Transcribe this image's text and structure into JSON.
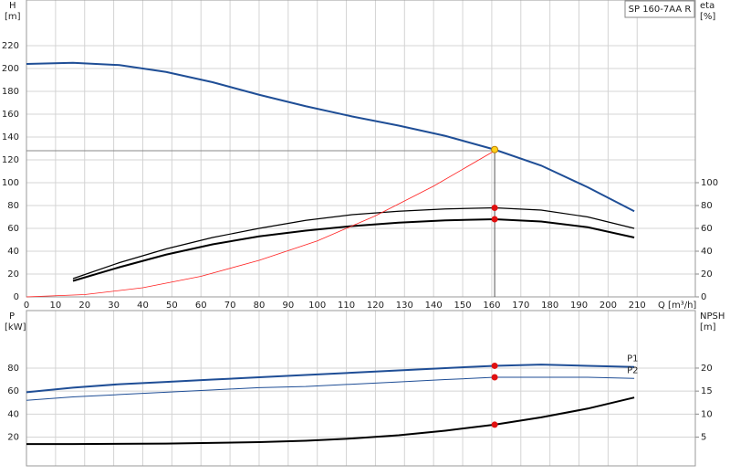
{
  "chart_data": [
    {
      "type": "line",
      "model": "SP 160-7AA R",
      "x_label": "Q [m³/h]",
      "y_label": "H",
      "y_unit": "[m]",
      "y2_label": "eta",
      "y2_unit": "[%]",
      "xlim": [
        0,
        230
      ],
      "ylim": [
        0,
        260
      ],
      "y2lim": [
        0,
        260
      ],
      "xticks": [
        0,
        10,
        20,
        30,
        40,
        50,
        60,
        70,
        80,
        90,
        100,
        110,
        120,
        130,
        140,
        150,
        160,
        170,
        180,
        190,
        200,
        210
      ],
      "show_xtick_labels": true,
      "yticks": [
        0,
        20,
        40,
        60,
        80,
        100,
        120,
        140,
        160,
        180,
        200,
        220
      ],
      "y2ticks": [
        0,
        20,
        40,
        60,
        80,
        100
      ],
      "grid": true,
      "duty_point": {
        "x": 161,
        "y": 128
      },
      "series": [
        {
          "x": [
            0,
            16,
            32,
            48,
            64,
            80,
            96,
            112,
            128,
            144,
            161,
            177,
            193,
            209
          ],
          "values": [
            204,
            205,
            203,
            197,
            188,
            177,
            167,
            158,
            150,
            141,
            129,
            115,
            96,
            75
          ],
          "color": "#1f4e96",
          "width": 2
        },
        {
          "x": [
            16,
            32,
            48,
            64,
            80,
            96,
            112,
            128,
            144,
            161,
            177,
            193,
            209
          ],
          "values": [
            16,
            30,
            42,
            52,
            60,
            67,
            72,
            75,
            77,
            78,
            76,
            70,
            60
          ],
          "color": "#000000",
          "width": 1.2,
          "axis": "y2"
        },
        {
          "x": [
            16,
            32,
            48,
            64,
            80,
            96,
            112,
            128,
            144,
            161,
            177,
            193,
            209
          ],
          "values": [
            14,
            26,
            37,
            46,
            53,
            58,
            62,
            65,
            67,
            68,
            66,
            61,
            52
          ],
          "color": "#000000",
          "width": 2,
          "axis": "y2"
        },
        {
          "x": [
            0,
            20,
            40,
            60,
            80,
            100,
            120,
            140,
            161
          ],
          "values": [
            0,
            2,
            8,
            18,
            32,
            49,
            71,
            97,
            128
          ],
          "color": "#ff2020",
          "width": 0.8
        }
      ],
      "markers": [
        {
          "x": 161,
          "y": 129,
          "color": "#ffd21a"
        },
        {
          "x": 161,
          "y": 78,
          "color": "#e01010",
          "axis": "y2"
        },
        {
          "x": 161,
          "y": 68,
          "color": "#e01010",
          "axis": "y2"
        }
      ]
    },
    {
      "type": "line",
      "y_label": "P",
      "y_unit": "[kW]",
      "y2_label": "NPSH",
      "y2_unit": "[m]",
      "xlim": [
        0,
        230
      ],
      "ylim": [
        -5,
        130
      ],
      "y2lim": [
        -1.25,
        32.5
      ],
      "xticks": [
        0,
        10,
        20,
        30,
        40,
        50,
        60,
        70,
        80,
        90,
        100,
        110,
        120,
        130,
        140,
        150,
        160,
        170,
        180,
        190,
        200,
        210
      ],
      "show_xtick_labels": false,
      "yticks": [
        20,
        40,
        60,
        80
      ],
      "y2ticks": [
        5,
        10,
        15,
        20
      ],
      "grid": true,
      "series": [
        {
          "name": "P1",
          "x": [
            0,
            16,
            32,
            48,
            64,
            80,
            96,
            112,
            128,
            144,
            161,
            177,
            193,
            209
          ],
          "values": [
            59,
            63,
            66,
            68,
            70,
            72,
            74,
            76,
            78,
            80,
            82,
            83,
            82,
            81
          ],
          "color": "#1f4e96",
          "width": 2
        },
        {
          "name": "P2",
          "x": [
            0,
            16,
            32,
            48,
            64,
            80,
            96,
            112,
            128,
            144,
            161,
            177,
            193,
            209
          ],
          "values": [
            52,
            55,
            57,
            59,
            61,
            63,
            64,
            66,
            68,
            70,
            72,
            72,
            72,
            71
          ],
          "color": "#1f4e96",
          "width": 1
        },
        {
          "x": [
            0,
            16,
            48,
            80,
            96,
            112,
            128,
            144,
            161,
            177,
            193,
            209
          ],
          "values": [
            3.5,
            3.5,
            3.6,
            3.9,
            4.2,
            4.7,
            5.4,
            6.4,
            7.7,
            9.3,
            11.2,
            13.6
          ],
          "color": "#000000",
          "width": 2,
          "axis": "y2"
        }
      ],
      "markers": [
        {
          "x": 161,
          "y": 82,
          "color": "#e01010"
        },
        {
          "x": 161,
          "y": 72,
          "color": "#e01010"
        },
        {
          "x": 161,
          "y": 7.7,
          "color": "#e01010",
          "axis": "y2"
        }
      ]
    }
  ]
}
